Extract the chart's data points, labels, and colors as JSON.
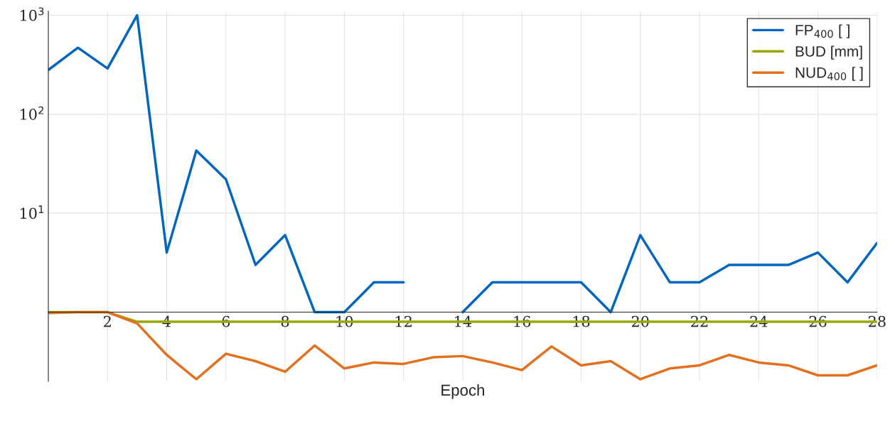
{
  "chart_data": {
    "type": "line",
    "xlabel": "Epoch",
    "log": "y",
    "grid": true,
    "legend": "top right",
    "marker": "none",
    "line_style": "solid",
    "x": [
      0,
      1,
      2,
      3,
      4,
      5,
      6,
      7,
      8,
      9,
      10,
      11,
      12,
      13,
      14,
      15,
      16,
      17,
      18,
      19,
      20,
      21,
      22,
      23,
      24,
      25,
      26,
      27,
      28
    ],
    "xlim": [
      0,
      28
    ],
    "xticks": [
      2,
      4,
      6,
      8,
      10,
      12,
      14,
      16,
      18,
      20,
      22,
      24,
      26,
      28
    ],
    "ylim": [
      0.2,
      1100
    ],
    "yticks": [
      {
        "value": 10,
        "label": "10$^{1}$"
      },
      {
        "value": 100,
        "label": "10$^{2}$"
      },
      {
        "value": 1000,
        "label": "10$^{3}$"
      }
    ],
    "series": [
      {
        "name": "FP$_{400}$ [ ]",
        "color": "#0066bf",
        "values": [
          280,
          470,
          290,
          1000,
          4,
          43,
          22,
          3,
          6,
          1,
          1,
          2,
          2,
          null,
          1,
          2,
          2,
          2,
          2,
          1,
          6,
          2,
          2,
          3,
          3,
          3,
          4,
          2,
          5
        ]
      },
      {
        "name": "BUD [mm]",
        "color": "#99a800",
        "values": [
          1,
          1,
          1,
          0.8,
          0.8,
          0.8,
          0.8,
          0.8,
          0.8,
          0.8,
          0.8,
          0.8,
          0.8,
          0.8,
          0.8,
          0.8,
          0.8,
          0.8,
          0.8,
          0.8,
          0.8,
          0.8,
          0.8,
          0.8,
          0.8,
          0.8,
          0.8,
          0.8,
          0.8
        ]
      },
      {
        "name": "NUD$_{400}$ [ ]",
        "color": "#e3701f",
        "values": [
          0.98,
          1,
          1,
          0.77,
          0.37,
          0.21,
          0.38,
          0.32,
          0.25,
          0.46,
          0.27,
          0.31,
          0.3,
          0.35,
          0.36,
          0.31,
          0.26,
          0.45,
          0.29,
          0.32,
          0.21,
          0.27,
          0.29,
          0.37,
          0.31,
          0.29,
          0.23,
          0.23,
          0.29
        ]
      }
    ]
  }
}
